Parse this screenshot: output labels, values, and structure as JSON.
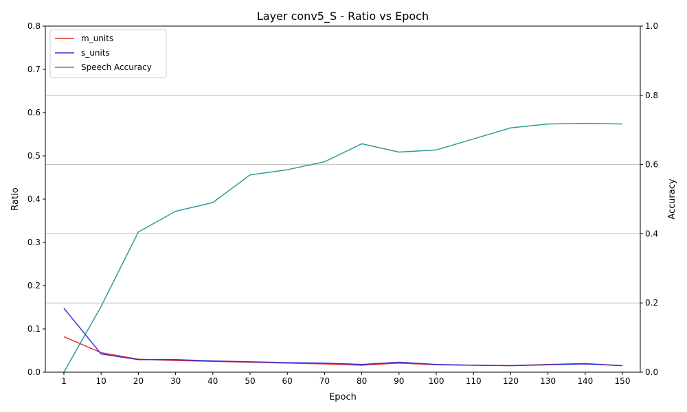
{
  "chart_data": {
    "type": "line",
    "title": "Layer conv5_S - Ratio vs Epoch",
    "xlabel": "Epoch",
    "ylabel": "Ratio",
    "y2label": "Accuracy",
    "categories": [
      "1",
      "10",
      "20",
      "30",
      "40",
      "50",
      "60",
      "70",
      "80",
      "90",
      "100",
      "110",
      "120",
      "130",
      "140",
      "150"
    ],
    "ylim": [
      0,
      0.8
    ],
    "y2lim": [
      0,
      1.0
    ],
    "yticks": [
      "0.0",
      "0.1",
      "0.2",
      "0.3",
      "0.4",
      "0.5",
      "0.6",
      "0.7",
      "0.8"
    ],
    "y2ticks": [
      "0.0",
      "0.2",
      "0.4",
      "0.6",
      "0.8",
      "1.0"
    ],
    "grid": "horizontal lines on accuracy axis",
    "legend_position": "top-left",
    "series": [
      {
        "name": "m_units",
        "axis": "left",
        "color": "#e8302a",
        "values": [
          0.082,
          0.045,
          0.03,
          0.027,
          0.025,
          0.023,
          0.021,
          0.019,
          0.016,
          0.021,
          0.017,
          0.016,
          0.015,
          0.018,
          0.02,
          0.015
        ]
      },
      {
        "name": "s_units",
        "axis": "left",
        "color": "#3b2fd9",
        "values": [
          0.148,
          0.042,
          0.029,
          0.029,
          0.026,
          0.024,
          0.022,
          0.021,
          0.018,
          0.023,
          0.018,
          0.016,
          0.015,
          0.017,
          0.019,
          0.015
        ]
      },
      {
        "name": "Speech Accuracy",
        "axis": "right",
        "color": "#2e9b96",
        "values": [
          0.0,
          0.19,
          0.405,
          0.465,
          0.49,
          0.57,
          0.585,
          0.608,
          0.66,
          0.636,
          0.642,
          0.674,
          0.706,
          0.717,
          0.719,
          0.717
        ]
      }
    ]
  }
}
